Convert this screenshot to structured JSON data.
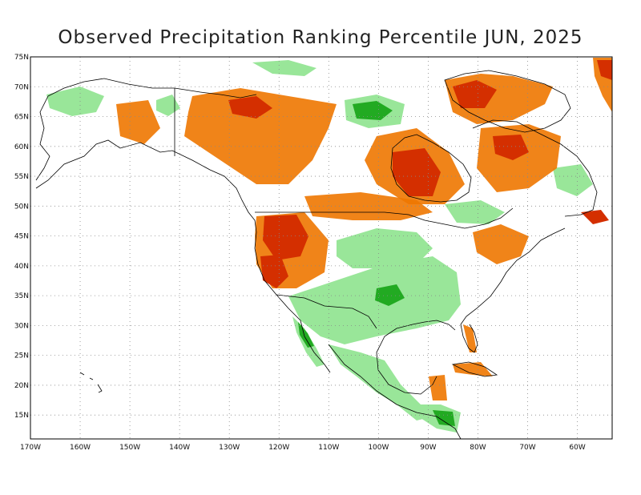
{
  "title": "Observed Precipitation Ranking Percentile JUN, 2025",
  "axes": {
    "lat_labels": [
      "75N",
      "70N",
      "65N",
      "60N",
      "55N",
      "50N",
      "45N",
      "40N",
      "35N",
      "30N",
      "25N",
      "20N",
      "15N"
    ],
    "lat_values": [
      75,
      70,
      65,
      60,
      55,
      50,
      45,
      40,
      35,
      30,
      25,
      20,
      15
    ],
    "lon_labels": [
      "170W",
      "160W",
      "150W",
      "140W",
      "130W",
      "120W",
      "110W",
      "100W",
      "90W",
      "80W",
      "70W",
      "60W"
    ],
    "lon_values": [
      -170,
      -160,
      -150,
      -140,
      -130,
      -120,
      -110,
      -100,
      -90,
      -80,
      -70,
      -60
    ],
    "lat_range": [
      11,
      75
    ],
    "lon_range": [
      -170,
      -53
    ],
    "grid": "dotted"
  },
  "colors": {
    "very_dry": "#d42f00",
    "dry": "#ee7700",
    "somewhat_dry": "#ffaa33",
    "somewhat_wet": "#99e699",
    "wet": "#55cc55",
    "very_wet": "#22aa22",
    "coast": "#000000",
    "grid": "#888888",
    "background": "#ffffff"
  }
}
